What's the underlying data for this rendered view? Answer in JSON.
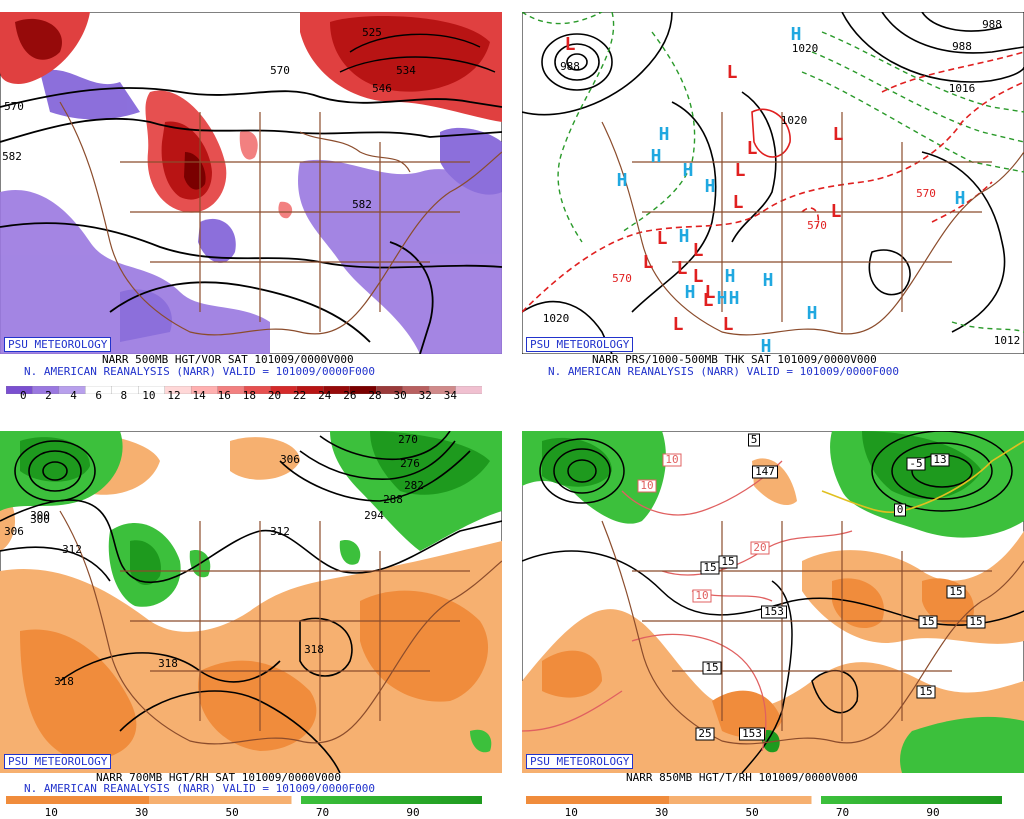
{
  "watermark": "PSU METEOROLOGY",
  "panels": [
    {
      "id": "p1",
      "product_line": "NARR 500MB HGT/VOR SAT 101009/0000V000",
      "source_line": "N. AMERICAN REANALYSIS (NARR) VALID = 101009/0000F000",
      "contour_labels": [
        "525",
        "534",
        "546",
        "570",
        "582",
        "582",
        "570"
      ],
      "colorbar": {
        "ticks": [
          "0",
          "2",
          "4",
          "6",
          "8",
          "10",
          "12",
          "14",
          "16",
          "18",
          "20",
          "22",
          "24",
          "26",
          "28",
          "30",
          "32",
          "34"
        ],
        "colors": [
          "#7a4fd0",
          "#9a78e0",
          "#b8a0ec",
          "#ffffff",
          "#ffffff",
          "#ffffff",
          "#ffd8d8",
          "#ffb0b0",
          "#f28080",
          "#e65050",
          "#d42a2a",
          "#b81414",
          "#960a0a",
          "#7a0000",
          "#9a3a3a",
          "#b86060",
          "#d08a8a",
          "#f0c0d0"
        ]
      }
    },
    {
      "id": "p2",
      "product_line": "NARR PRS/1000-500MB THK SAT 101009/0000V000",
      "source_line": "N. AMERICAN REANALYSIS (NARR) VALID = 101009/0000F000",
      "contour_labels": [
        "988",
        "1020",
        "988",
        "1020",
        "570",
        "570",
        "1020",
        "1016",
        "988",
        "1012",
        "570"
      ],
      "low_marker": "L",
      "high_marker": "H"
    },
    {
      "id": "p3",
      "product_line": "NARR 700MB HGT/RH SAT 101009/0000V000",
      "source_line": "N. AMERICAN REANALYSIS (NARR) VALID = 101009/0000F000",
      "contour_labels": [
        "306",
        "300",
        "312",
        "300",
        "306",
        "312",
        "318",
        "318",
        "318",
        "270",
        "276",
        "282",
        "288",
        "294"
      ],
      "colorbar": {
        "ticks": [
          "10",
          "30",
          "50",
          "70",
          "90"
        ]
      }
    },
    {
      "id": "p4",
      "product_line": "NARR 850MB HGT/T/RH 101009/0000V000",
      "contour_labels": [
        "5",
        "10",
        "10",
        "20",
        "15",
        "10",
        "15",
        "147",
        "153",
        "15",
        "25",
        "153",
        "15",
        "15",
        "-5",
        "13",
        "0",
        "15",
        "15"
      ],
      "colorbar": {
        "ticks": [
          "10",
          "30",
          "50",
          "70",
          "90"
        ]
      }
    }
  ],
  "colors": {
    "rh_dry_dark": "#f08c3c",
    "rh_dry_light": "#f6b070",
    "rh_moist": "#3cc03c",
    "rh_moist_dark": "#1e9a1e",
    "vort_pos": "#e04040",
    "vort_neg": "#8060d8",
    "geography": "#8b4c2c",
    "low_red": "#e02020",
    "high_cyan": "#20a8e0",
    "thickness_red": "#e02020",
    "thickness_green": "#2a9a2a"
  }
}
